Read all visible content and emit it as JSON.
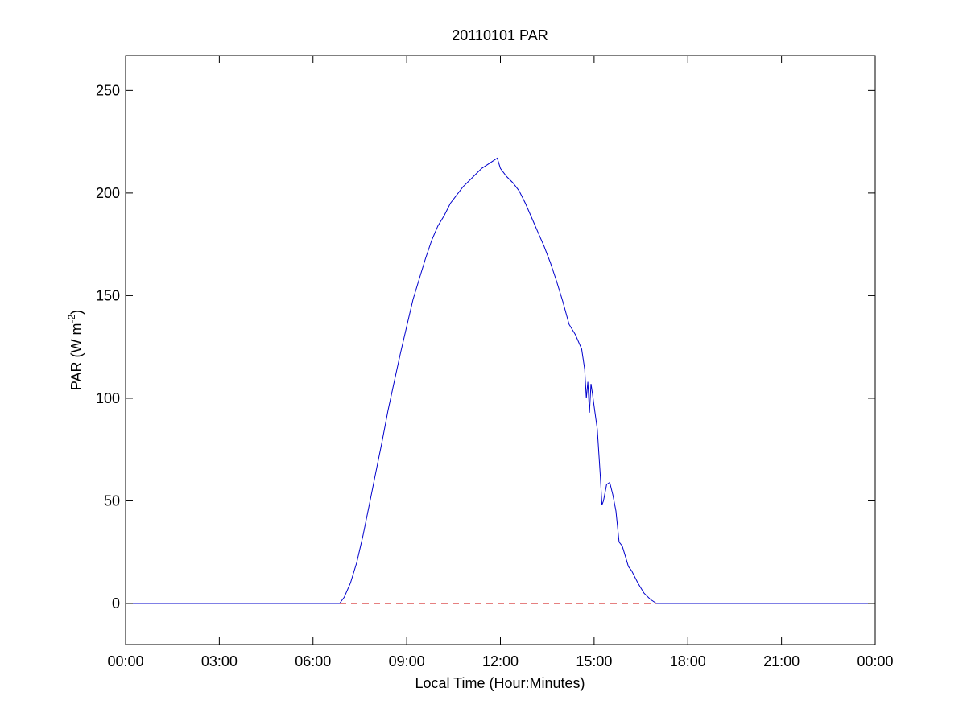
{
  "chart_data": {
    "type": "line",
    "title": "20110101 PAR",
    "xlabel": "Local Time (Hour:Minutes)",
    "ylabel": {
      "base": "PAR (W m",
      "superscript": "-2",
      "closing": ")"
    },
    "x_unit": "hour of day",
    "xlim": [
      0,
      24
    ],
    "ylim": [
      -20,
      267
    ],
    "x_ticks": [
      0,
      3,
      6,
      9,
      12,
      15,
      18,
      21,
      24
    ],
    "x_tick_labels": [
      "00:00",
      "03:00",
      "06:00",
      "09:00",
      "12:00",
      "15:00",
      "18:00",
      "21:00",
      "00:00"
    ],
    "y_ticks": [
      0,
      50,
      100,
      150,
      200,
      250
    ],
    "y_tick_labels": [
      "0",
      "50",
      "100",
      "150",
      "200",
      "250"
    ],
    "grid": false,
    "legend": "none",
    "series": [
      {
        "color": "#0000cc",
        "style": "solid",
        "x": [
          0,
          6.0,
          6.85,
          7.0,
          7.2,
          7.4,
          7.6,
          7.8,
          8.0,
          8.2,
          8.4,
          8.6,
          8.8,
          9.0,
          9.2,
          9.4,
          9.6,
          9.8,
          10.0,
          10.2,
          10.4,
          10.6,
          10.8,
          11.0,
          11.2,
          11.4,
          11.6,
          11.8,
          11.9,
          12.0,
          12.2,
          12.4,
          12.6,
          12.8,
          13.0,
          13.2,
          13.4,
          13.6,
          13.8,
          14.0,
          14.2,
          14.4,
          14.6,
          14.7,
          14.75,
          14.8,
          14.85,
          14.9,
          14.95,
          15.0,
          15.1,
          15.2,
          15.25,
          15.3,
          15.4,
          15.5,
          15.6,
          15.7,
          15.8,
          15.9,
          16.0,
          16.1,
          16.2,
          16.4,
          16.6,
          16.8,
          17.0,
          17.2,
          17.4,
          18.0,
          24.0
        ],
        "y": [
          0,
          0,
          0,
          3,
          10,
          20,
          33,
          48,
          63,
          78,
          94,
          108,
          122,
          135,
          148,
          158,
          168,
          177,
          184,
          189,
          195,
          199,
          203,
          206,
          209,
          212,
          214,
          216,
          217,
          212,
          208,
          205,
          201,
          195,
          188,
          181,
          174,
          166,
          157,
          147,
          136,
          131,
          124,
          114,
          100,
          108,
          93,
          107,
          102,
          96,
          85,
          62,
          48,
          50,
          58,
          59,
          53,
          45,
          30,
          28,
          23,
          18,
          16,
          10,
          5,
          2,
          0,
          0,
          0,
          0,
          0
        ]
      },
      {
        "color": "#cc0000",
        "style": "dashed",
        "x": [
          0,
          24
        ],
        "y": [
          0,
          0
        ]
      }
    ]
  }
}
